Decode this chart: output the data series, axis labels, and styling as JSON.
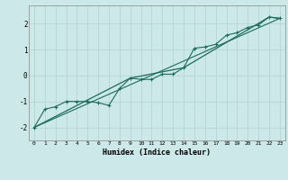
{
  "xlabel": "Humidex (Indice chaleur)",
  "bg_color": "#cce8e8",
  "grid_color": "#b8d8d8",
  "line_color": "#1a6b5a",
  "xlim": [
    -0.5,
    23.5
  ],
  "ylim": [
    -2.5,
    2.7
  ],
  "x_ticks": [
    0,
    1,
    2,
    3,
    4,
    5,
    6,
    7,
    8,
    9,
    10,
    11,
    12,
    13,
    14,
    15,
    16,
    17,
    18,
    19,
    20,
    21,
    22,
    23
  ],
  "y_ticks": [
    -2,
    -1,
    0,
    1,
    2
  ],
  "line1_x": [
    0,
    1,
    2,
    3,
    4,
    5,
    6,
    7,
    8,
    9,
    10,
    11,
    12,
    13,
    14,
    15,
    16,
    17,
    18,
    19,
    20,
    21,
    22,
    23
  ],
  "line1_y": [
    -2.0,
    -1.3,
    -1.2,
    -1.0,
    -1.0,
    -1.0,
    -1.05,
    -1.15,
    -0.5,
    -0.1,
    -0.15,
    -0.15,
    0.05,
    0.05,
    0.3,
    1.05,
    1.1,
    1.2,
    1.55,
    1.65,
    1.85,
    1.95,
    2.25,
    2.2
  ],
  "line2_x": [
    0,
    9,
    14,
    22,
    23
  ],
  "line2_y": [
    -2.0,
    -0.1,
    0.3,
    2.25,
    2.2
  ],
  "line3_x": [
    0,
    23
  ],
  "line3_y": [
    -2.0,
    2.2
  ]
}
